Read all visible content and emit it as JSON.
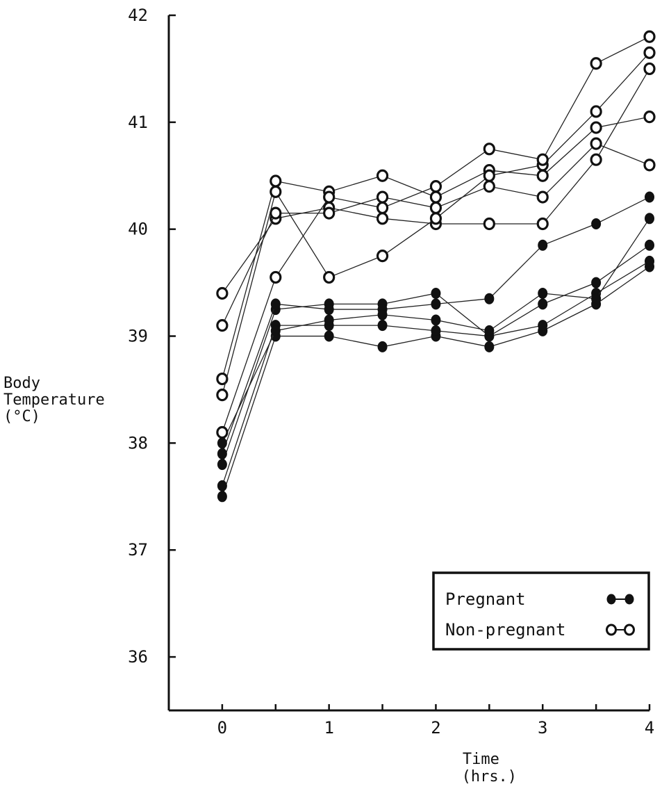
{
  "chart_data": {
    "type": "line",
    "title": "",
    "xlabel": [
      "Time",
      "(hrs.)"
    ],
    "ylabel": [
      "Body",
      "Temperature",
      "(°C)"
    ],
    "xlim": [
      -0.5,
      4
    ],
    "ylim": [
      35.5,
      42
    ],
    "x_ticks": [
      0,
      0.5,
      1,
      1.5,
      2,
      2.5,
      3,
      3.5,
      4
    ],
    "x_tick_labels": [
      "0",
      "",
      "1",
      "",
      "2",
      "",
      "3",
      "",
      "4"
    ],
    "y_ticks": [
      36,
      37,
      38,
      39,
      40,
      41,
      42
    ],
    "y_tick_labels": [
      "36",
      "37",
      "38",
      "39",
      "40",
      "41",
      "42"
    ],
    "grid": false,
    "legend_position": "lower-right",
    "legend": [
      {
        "label": "Pregnant",
        "marker": "filled"
      },
      {
        "label": "Non-pregnant",
        "marker": "open"
      }
    ],
    "x": [
      0,
      0.5,
      1,
      1.5,
      2,
      2.5,
      3,
      3.5,
      4
    ],
    "series": [
      {
        "group": "Pregnant",
        "marker": "filled",
        "values": [
          37.5,
          39.0,
          39.0,
          38.9,
          39.0,
          38.9,
          39.05,
          39.3,
          39.65
        ]
      },
      {
        "group": "Pregnant",
        "marker": "filled",
        "values": [
          37.6,
          39.1,
          39.1,
          39.1,
          39.05,
          39.0,
          39.1,
          39.4,
          39.7
        ]
      },
      {
        "group": "Pregnant",
        "marker": "filled",
        "values": [
          37.8,
          39.25,
          39.3,
          39.3,
          39.4,
          39.0,
          39.3,
          39.5,
          39.85
        ]
      },
      {
        "group": "Pregnant",
        "marker": "filled",
        "values": [
          37.9,
          39.3,
          39.25,
          39.25,
          39.3,
          39.35,
          39.85,
          40.05,
          40.3
        ]
      },
      {
        "group": "Pregnant",
        "marker": "filled",
        "values": [
          38.0,
          39.05,
          39.15,
          39.2,
          39.15,
          39.05,
          39.4,
          39.35,
          40.1
        ]
      },
      {
        "group": "Non-pregnant",
        "marker": "open",
        "values": [
          39.4,
          40.1,
          40.2,
          40.1,
          40.05,
          40.05,
          40.05,
          40.65,
          41.5
        ]
      },
      {
        "group": "Non-pregnant",
        "marker": "open",
        "values": [
          39.1,
          40.15,
          40.15,
          40.3,
          40.2,
          40.4,
          40.3,
          40.8,
          40.6
        ]
      },
      {
        "group": "Non-pregnant",
        "marker": "open",
        "values": [
          38.6,
          40.45,
          40.35,
          40.5,
          40.3,
          40.55,
          40.5,
          40.95,
          41.05
        ]
      },
      {
        "group": "Non-pregnant",
        "marker": "open",
        "values": [
          38.45,
          40.35,
          39.55,
          39.75,
          40.1,
          40.5,
          40.6,
          41.1,
          41.65
        ]
      },
      {
        "group": "Non-pregnant",
        "marker": "open",
        "values": [
          38.1,
          39.55,
          40.3,
          40.2,
          40.4,
          40.75,
          40.65,
          41.55,
          41.8
        ]
      }
    ]
  }
}
